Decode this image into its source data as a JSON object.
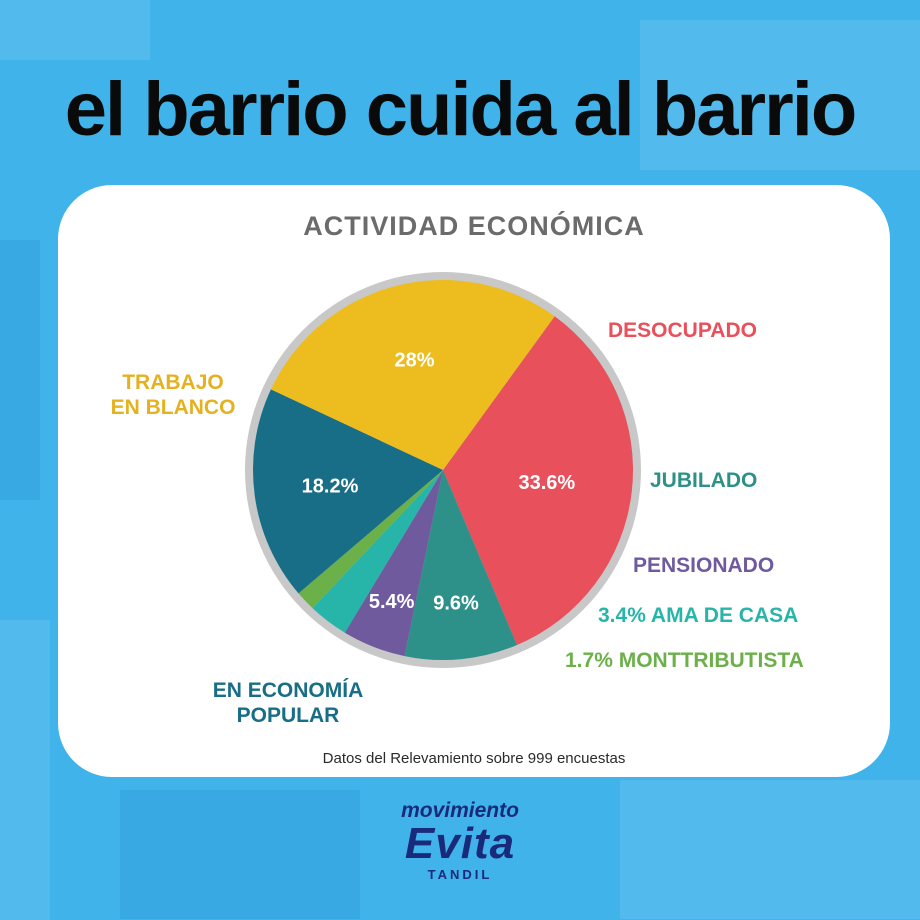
{
  "headline": "el barrio cuida al barrio",
  "source_note": "Datos del Relevamiento sobre 999 encuestas",
  "brand": {
    "top": "movimiento",
    "main": "Evita",
    "city": "TANDIL"
  },
  "chart_data": {
    "type": "pie",
    "title": "ACTIVIDAD ECONÓMICA",
    "slices": [
      {
        "label": "DESOCUPADO",
        "value_label": "33.6%",
        "value": 33.6,
        "color": "#e8505b",
        "label_color": "#e8505b",
        "inside": true
      },
      {
        "label": "JUBILADO",
        "value_label": "9.6%",
        "value": 9.6,
        "color": "#2e9189",
        "label_color": "#2e9189",
        "inside": true
      },
      {
        "label": "PENSIONADO",
        "value_label": "5.4%",
        "value": 5.4,
        "color": "#6f5a9e",
        "label_color": "#6f5a9e",
        "inside": true
      },
      {
        "label": "3.4% AMA DE CASA",
        "value_label": "3.4%",
        "value": 3.4,
        "color": "#27b5a9",
        "label_color": "#27b5a9",
        "inside": false
      },
      {
        "label": "1.7% MONTTRIBUTISTA",
        "value_label": "1.7%",
        "value": 1.7,
        "color": "#6cb04a",
        "label_color": "#6cb04a",
        "inside": false
      },
      {
        "label": "EN ECONOMÍA POPULAR",
        "value_label": "18.2%",
        "value": 18.2,
        "color": "#176e86",
        "label_color": "#176e86",
        "inside": true
      },
      {
        "label": "TRABAJO EN BLANCO",
        "value_label": "28%",
        "value": 28,
        "color": "#edbc1f",
        "label_color": "#e4b220",
        "inside": true
      }
    ],
    "rim_color": "#c8c8c8"
  }
}
